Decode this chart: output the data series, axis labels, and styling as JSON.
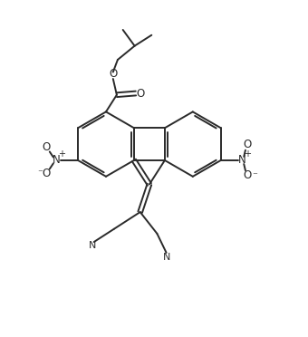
{
  "bg_color": "#ffffff",
  "line_color": "#2a2a2a",
  "line_width": 1.4,
  "figsize": [
    3.4,
    3.72
  ],
  "dpi": 100,
  "xlim": [
    0,
    10
  ],
  "ylim": [
    0,
    10.9
  ]
}
